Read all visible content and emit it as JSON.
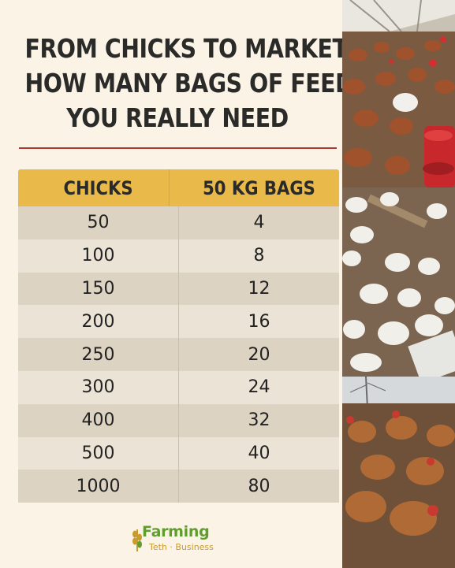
{
  "title": {
    "line1": "FROM CHICKS TO MARKET:",
    "line2": "HOW MANY BAGS OF FEED",
    "line3": "YOU REALLY NEED"
  },
  "table": {
    "headers": [
      "CHICKS",
      "50 KG BAGS"
    ],
    "rows": [
      [
        "50",
        "4"
      ],
      [
        "100",
        "8"
      ],
      [
        "150",
        "12"
      ],
      [
        "200",
        "16"
      ],
      [
        "250",
        "20"
      ],
      [
        "300",
        "24"
      ],
      [
        "400",
        "32"
      ],
      [
        "500",
        "40"
      ],
      [
        "1000",
        "80"
      ]
    ]
  },
  "logo": {
    "main": "Farming",
    "sub": "Teth · Business"
  },
  "colors": {
    "background": "#fbf3e6",
    "header": "#e9b94a",
    "divider": "#a73a32",
    "logo_green": "#5f9e2e",
    "logo_gold": "#c79b2e"
  },
  "photos": [
    "brown-chickens-in-poultry-house",
    "white-broiler-chicks",
    "brown-hens-outdoors"
  ]
}
